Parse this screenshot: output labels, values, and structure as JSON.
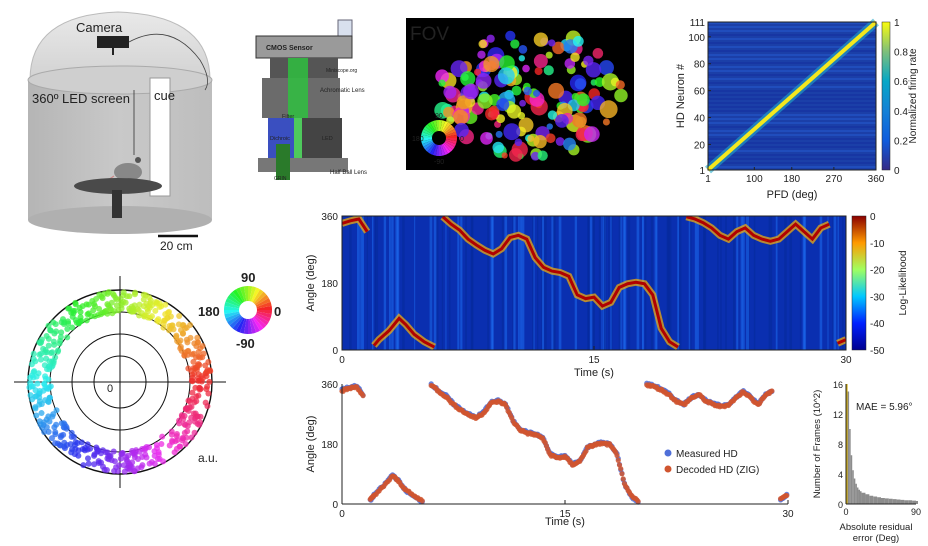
{
  "arena": {
    "camera_label": "Camera",
    "screen_label": "360º LED screen",
    "cue_label": "cue",
    "scale_label": "20 cm"
  },
  "scope": {
    "sensor_label": "CMOS Sensor",
    "site_label": "Miniscope.org",
    "lens_label": "Achromatic Lens",
    "filter_label": "Filter",
    "dichroic_label": "Dichroic",
    "led_label": "LED",
    "grin_label": "GRIN",
    "ball_lens_label": "Half Ball Lens"
  },
  "fov": {
    "title": "FOV",
    "wheel_top": "90",
    "wheel_left": "180",
    "wheel_right": "0",
    "wheel_bottom": "-90"
  },
  "tuning": {
    "type": "heatmap",
    "ylabel": "HD Neuron #",
    "xlabel": "PFD (deg)",
    "colorbar_label": "Normalized firing rate",
    "x_ticks": [
      "1",
      "100",
      "180",
      "270",
      "360"
    ],
    "y_ticks": [
      "111",
      "100",
      "80",
      "60",
      "40",
      "20",
      "1"
    ],
    "cbar_ticks": [
      "1",
      "0.8",
      "0.6",
      "0.4",
      "0.2",
      "0"
    ],
    "xlim": [
      1,
      360
    ],
    "ylim": [
      1,
      111
    ],
    "clim": [
      0,
      1
    ]
  },
  "polar": {
    "wheel_top": "90",
    "wheel_left": "180",
    "wheel_right": "0",
    "wheel_bottom": "-90",
    "center_label": "0",
    "unit_label": "a.u."
  },
  "loglik": {
    "type": "heatmap",
    "ylabel": "Angle (deg)",
    "xlabel": "Time (s)",
    "colorbar_label": "Log-Likelihood",
    "x_ticks": [
      "0",
      "15",
      "30"
    ],
    "y_ticks": [
      "360",
      "180",
      "0"
    ],
    "cbar_ticks": [
      "0",
      "-10",
      "-20",
      "-30",
      "-40",
      "-50"
    ],
    "xlim": [
      0,
      30
    ],
    "ylim": [
      0,
      360
    ],
    "clim": [
      -50,
      0
    ]
  },
  "decode": {
    "ylabel": "Angle (deg)",
    "xlabel": "Time (s)",
    "x_ticks": [
      "0",
      "15",
      "30"
    ],
    "y_ticks": [
      "360",
      "180",
      "0"
    ],
    "legend": [
      "Measured HD",
      "Decoded HD (ZIG)"
    ],
    "series_colors": [
      "#4f6fd8",
      "#d0552f"
    ]
  },
  "hist": {
    "ylabel": "Number of Frames (10^2)",
    "xlabel": "Absolute residual error (Deg)",
    "annotation": "MAE = 5.96°",
    "x_ticks": [
      "0",
      "90"
    ],
    "y_ticks": [
      "16",
      "12",
      "8",
      "4",
      "0"
    ]
  },
  "chart_data": [
    {
      "type": "line",
      "title": "",
      "xlabel": "Time (s)",
      "ylabel": "Angle (deg)",
      "xlim": [
        0,
        30
      ],
      "ylim": [
        0,
        360
      ],
      "series": [
        {
          "name": "Measured HD",
          "x": [
            0,
            0.5,
            1,
            1.5,
            1.9,
            2.2,
            2.8,
            3.4,
            3.8,
            4.3,
            4.9,
            5.5,
            6,
            6.5,
            7,
            7.5,
            8,
            8.5,
            9,
            9.5,
            10,
            10.5,
            11,
            11.5,
            12,
            12.5,
            13,
            13.5,
            14,
            14.5,
            15,
            15.5,
            16,
            16.5,
            17,
            17.5,
            18,
            18.5,
            19,
            19.5,
            20,
            20.5,
            21,
            21.5,
            22,
            22.5,
            23,
            23.5,
            24,
            24.5,
            25,
            25.5,
            26,
            26.5,
            27,
            27.5,
            28,
            28.5,
            29,
            29.5,
            30
          ],
          "y": [
            345,
            350,
            355,
            320,
            10,
            30,
            55,
            88,
            70,
            40,
            20,
            5,
            360,
            340,
            325,
            300,
            285,
            270,
            260,
            275,
            305,
            310,
            300,
            250,
            225,
            215,
            210,
            200,
            150,
            140,
            145,
            120,
            130,
            170,
            180,
            185,
            180,
            150,
            60,
            20,
            5,
            360,
            355,
            345,
            330,
            310,
            300,
            320,
            330,
            310,
            300,
            295,
            300,
            320,
            340,
            320,
            300,
            330,
            340,
            15,
            30
          ]
        },
        {
          "name": "Decoded HD (ZIG)",
          "x": [
            0,
            0.5,
            1,
            1.5,
            1.9,
            2.2,
            2.8,
            3.4,
            3.8,
            4.3,
            4.9,
            5.5,
            6,
            6.5,
            7,
            7.5,
            8,
            8.5,
            9,
            9.5,
            10,
            10.5,
            11,
            11.5,
            12,
            12.5,
            13,
            13.5,
            14,
            14.5,
            15,
            15.5,
            16,
            16.5,
            17,
            17.5,
            18,
            18.5,
            19,
            19.5,
            20,
            20.5,
            21,
            21.5,
            22,
            22.5,
            23,
            23.5,
            24,
            24.5,
            25,
            25.5,
            26,
            26.5,
            27,
            27.5,
            28,
            28.5,
            29,
            29.5,
            30
          ],
          "y": [
            340,
            347,
            352,
            318,
            12,
            28,
            52,
            85,
            68,
            42,
            22,
            8,
            358,
            338,
            322,
            298,
            282,
            268,
            258,
            272,
            302,
            308,
            298,
            248,
            222,
            212,
            208,
            198,
            148,
            138,
            142,
            118,
            128,
            168,
            178,
            182,
            178,
            148,
            58,
            22,
            8,
            358,
            352,
            342,
            328,
            308,
            298,
            318,
            328,
            308,
            298,
            292,
            298,
            318,
            338,
            318,
            298,
            328,
            338,
            18,
            28
          ]
        }
      ]
    },
    {
      "type": "bar",
      "title": "",
      "xlabel": "Absolute residual error (Deg)",
      "ylabel": "Number of Frames (10^2)",
      "xlim": [
        0,
        90
      ],
      "ylim": [
        0,
        16
      ],
      "annotation": "MAE = 5.96°",
      "x": [
        0,
        2,
        4,
        6,
        8,
        10,
        12,
        14,
        16,
        18,
        20,
        25,
        30,
        35,
        40,
        45,
        50,
        55,
        60,
        65,
        70,
        75,
        80,
        85,
        90
      ],
      "values": [
        16,
        15,
        10,
        6.5,
        4.5,
        3.4,
        2.7,
        2.2,
        1.9,
        1.7,
        1.5,
        1.3,
        1.1,
        1.0,
        0.9,
        0.8,
        0.75,
        0.7,
        0.65,
        0.6,
        0.55,
        0.5,
        0.5,
        0.45,
        0.4
      ]
    }
  ]
}
